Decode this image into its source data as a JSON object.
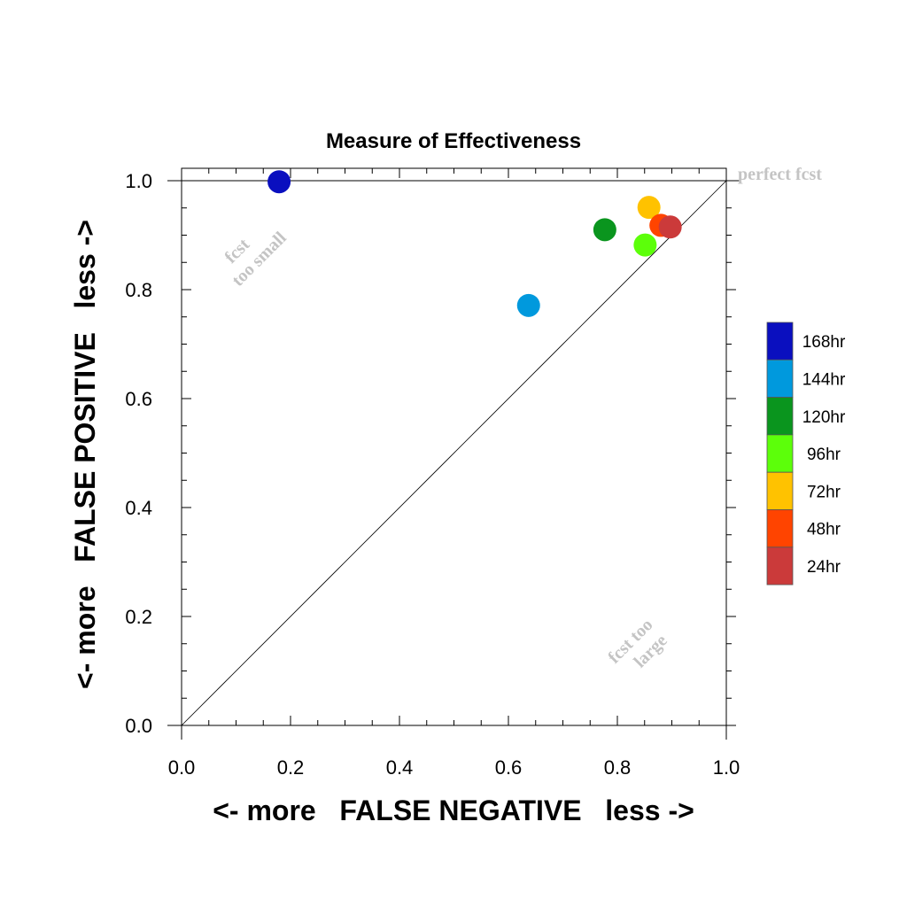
{
  "chart_data": {
    "type": "scatter",
    "title": "Measure of Effectiveness",
    "xlabel": "<- more   FALSE NEGATIVE   less ->",
    "ylabel": "<- more   FALSE POSITIVE   less ->",
    "xlim": [
      0.0,
      1.0
    ],
    "ylim": [
      0.0,
      1.0
    ],
    "x_ticks": [
      "0.0",
      "0.2",
      "0.4",
      "0.6",
      "0.8",
      "1.0"
    ],
    "y_ticks": [
      "0.0",
      "0.2",
      "0.4",
      "0.6",
      "0.8",
      "1.0"
    ],
    "grid": false,
    "diagonal_line": true,
    "annotations": {
      "perfect": "perfect fcst",
      "too_small_1": "fcst",
      "too_small_2": "too small",
      "too_large_1": "fcst too",
      "too_large_2": "large"
    },
    "legend_position": "right",
    "series": [
      {
        "name": "168hr",
        "color": "#0a0fbf",
        "x": 0.179,
        "y": 0.998
      },
      {
        "name": "144hr",
        "color": "#0099dd",
        "x": 0.637,
        "y": 0.771
      },
      {
        "name": "120hr",
        "color": "#0a951e",
        "x": 0.777,
        "y": 0.91
      },
      {
        "name": "96hr",
        "color": "#5cff0a",
        "x": 0.851,
        "y": 0.882
      },
      {
        "name": "72hr",
        "color": "#ffc200",
        "x": 0.858,
        "y": 0.951
      },
      {
        "name": "48hr",
        "color": "#ff4400",
        "x": 0.88,
        "y": 0.918
      },
      {
        "name": "24hr",
        "color": "#cb3a3a",
        "x": 0.897,
        "y": 0.915
      }
    ]
  }
}
